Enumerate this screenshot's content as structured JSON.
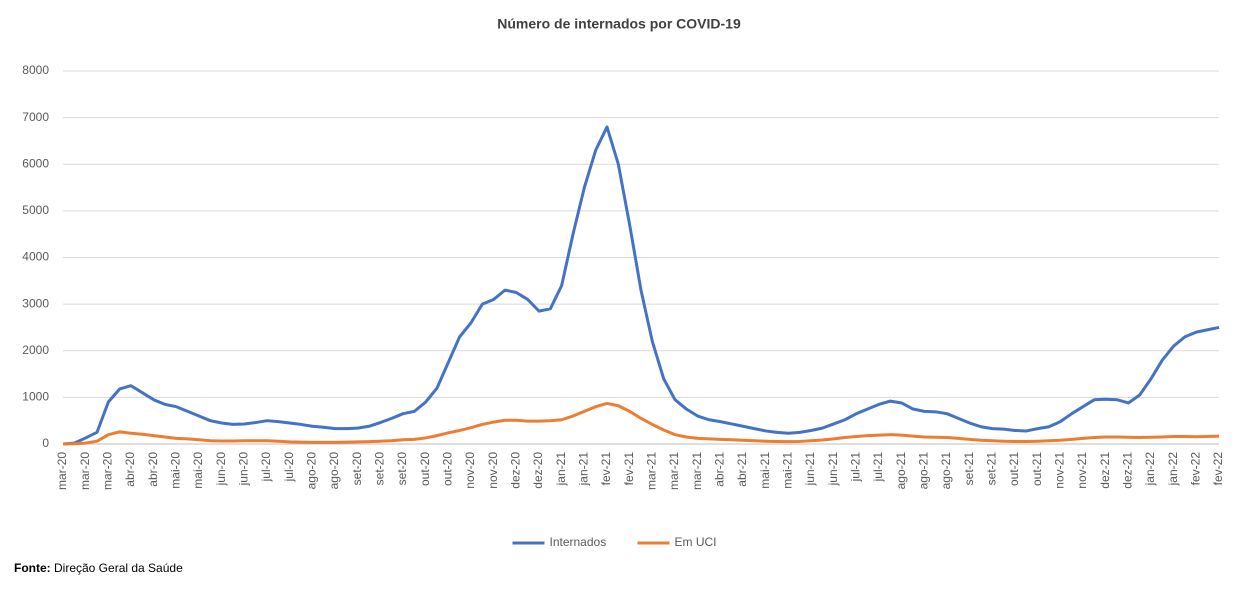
{
  "chart_data": {
    "type": "line",
    "title": "Número de internados por COVID-19",
    "categories": [
      "mar-20",
      null,
      "mar-20",
      null,
      "mar-20",
      null,
      "abr-20",
      null,
      "abr-20",
      null,
      "mai-20",
      null,
      "mai-20",
      null,
      "jun-20",
      null,
      "jun-20",
      null,
      "jul-20",
      null,
      "jul-20",
      null,
      "ago-20",
      null,
      "ago-20",
      null,
      "set-20",
      null,
      "set-20",
      null,
      "set-20",
      null,
      "out-20",
      null,
      "out-20",
      null,
      "nov-20",
      null,
      "nov-20",
      null,
      "dez-20",
      null,
      "dez-20",
      null,
      "jan-21",
      null,
      "jan-21",
      null,
      "fev-21",
      null,
      "fev-21",
      null,
      "mar-21",
      null,
      "mar-21",
      null,
      "mar-21",
      null,
      "abr-21",
      null,
      "abr-21",
      null,
      "mai-21",
      null,
      "mai-21",
      null,
      "jun-21",
      null,
      "jun-21",
      null,
      "jul-21",
      null,
      "jul-21",
      null,
      "ago-21",
      null,
      "ago-21",
      null,
      "ago-21",
      null,
      "set-21",
      null,
      "set-21",
      null,
      "out-21",
      null,
      "out-21",
      null,
      "nov-21",
      null,
      "nov-21",
      null,
      "dez-21",
      null,
      "dez-21",
      null,
      "jan-22",
      null,
      "jan-22",
      null,
      "fev-22",
      null,
      "fev-22"
    ],
    "series": [
      {
        "name": "Internados",
        "color": "#4472c4",
        "values": [
          0,
          20,
          130,
          250,
          900,
          1180,
          1250,
          1100,
          950,
          850,
          800,
          700,
          600,
          500,
          450,
          420,
          430,
          460,
          500,
          480,
          450,
          420,
          380,
          360,
          330,
          330,
          340,
          380,
          460,
          550,
          650,
          700,
          900,
          1200,
          1750,
          2300,
          2600,
          3000,
          3100,
          3300,
          3250,
          3100,
          2850,
          2900,
          3400,
          4500,
          5500,
          6300,
          6800,
          6000,
          4700,
          3300,
          2200,
          1400,
          950,
          750,
          600,
          520,
          480,
          430,
          380,
          330,
          280,
          250,
          230,
          250,
          290,
          340,
          430,
          520,
          650,
          750,
          850,
          920,
          880,
          750,
          700,
          690,
          650,
          550,
          450,
          370,
          330,
          320,
          290,
          280,
          330,
          370,
          480,
          650,
          800,
          950,
          960,
          950,
          880,
          1050,
          1400,
          1800,
          2100,
          2300,
          2400,
          2450,
          2500
        ]
      },
      {
        "name": "Em UCI",
        "color": "#ed7d31",
        "values": [
          0,
          5,
          20,
          60,
          200,
          260,
          230,
          210,
          180,
          150,
          120,
          110,
          90,
          70,
          65,
          65,
          70,
          70,
          70,
          60,
          45,
          40,
          35,
          35,
          35,
          40,
          45,
          50,
          60,
          70,
          90,
          100,
          130,
          180,
          240,
          290,
          350,
          420,
          470,
          510,
          510,
          490,
          490,
          500,
          520,
          600,
          700,
          800,
          870,
          820,
          700,
          550,
          420,
          300,
          200,
          150,
          120,
          110,
          100,
          90,
          80,
          70,
          60,
          55,
          50,
          55,
          70,
          85,
          110,
          140,
          160,
          180,
          190,
          200,
          190,
          170,
          150,
          145,
          140,
          120,
          100,
          80,
          70,
          60,
          55,
          55,
          60,
          70,
          80,
          100,
          120,
          140,
          150,
          150,
          145,
          140,
          145,
          150,
          160,
          160,
          155,
          160,
          170
        ]
      }
    ],
    "ylim": [
      0,
      8000
    ],
    "yticks": [
      0,
      1000,
      2000,
      3000,
      4000,
      5000,
      6000,
      7000,
      8000
    ],
    "grid": true,
    "legend": "bottom",
    "source_label": "Fonte:",
    "source": "Direção Geral da Saúde"
  }
}
